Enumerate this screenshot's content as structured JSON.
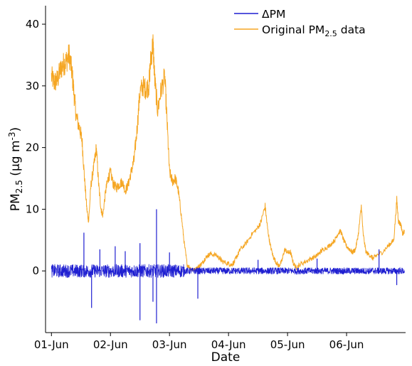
{
  "chart_data": {
    "type": "line",
    "xlabel": "Date",
    "ylabel": {
      "main": "PM",
      "sub": "2.5",
      "unit_prefix": " (µg m",
      "unit_sup": "-3",
      "unit_suffix": ")"
    },
    "x_ticks": [
      {
        "day": 1,
        "label": "01-Jun"
      },
      {
        "day": 2,
        "label": "02-Jun"
      },
      {
        "day": 3,
        "label": "03-Jun"
      },
      {
        "day": 4,
        "label": "04-Jun"
      },
      {
        "day": 5,
        "label": "05-Jun"
      },
      {
        "day": 6,
        "label": "06-Jun"
      }
    ],
    "xlim": [
      0.9,
      7.0
    ],
    "ylim": [
      -10,
      43
    ],
    "y_ticks": [
      0,
      10,
      20,
      30,
      40
    ],
    "grid": false,
    "legend_position": "top-right",
    "series": [
      {
        "name": "ΔPM",
        "color": "#1f1fd1",
        "baseline_range": [
          -1,
          1
        ],
        "spikes": [
          {
            "day": 1.55,
            "value": 6.2
          },
          {
            "day": 1.68,
            "value": -6.0
          },
          {
            "day": 1.82,
            "value": 3.5
          },
          {
            "day": 2.08,
            "value": 4.0
          },
          {
            "day": 2.25,
            "value": 3.2
          },
          {
            "day": 2.5,
            "value": 4.5
          },
          {
            "day": 2.5,
            "value": -8.0
          },
          {
            "day": 2.78,
            "value": 10.0
          },
          {
            "day": 2.78,
            "value": -8.5
          },
          {
            "day": 2.72,
            "value": -5.0
          },
          {
            "day": 3.0,
            "value": 3.0
          },
          {
            "day": 3.48,
            "value": -4.5
          },
          {
            "day": 4.5,
            "value": 1.8
          },
          {
            "day": 5.5,
            "value": 2.0
          },
          {
            "day": 6.55,
            "value": 3.5
          },
          {
            "day": 6.85,
            "value": -2.3
          }
        ]
      },
      {
        "name": "Original PM",
        "name_sub": "2.5",
        "name_suffix": " data",
        "color": "#f5a623",
        "points": [
          [
            1.0,
            31.5
          ],
          [
            1.05,
            30.5
          ],
          [
            1.1,
            31.0
          ],
          [
            1.15,
            32.5
          ],
          [
            1.2,
            33.5
          ],
          [
            1.25,
            34.0
          ],
          [
            1.3,
            35.0
          ],
          [
            1.35,
            32.0
          ],
          [
            1.38,
            29.0
          ],
          [
            1.42,
            25.0
          ],
          [
            1.48,
            23.0
          ],
          [
            1.52,
            21.0
          ],
          [
            1.56,
            15.0
          ],
          [
            1.6,
            10.0
          ],
          [
            1.63,
            8.0
          ],
          [
            1.67,
            14.0
          ],
          [
            1.72,
            17.0
          ],
          [
            1.76,
            20.0
          ],
          [
            1.8,
            14.0
          ],
          [
            1.84,
            10.0
          ],
          [
            1.87,
            9.0
          ],
          [
            1.92,
            13.0
          ],
          [
            1.96,
            15.0
          ],
          [
            2.0,
            16.0
          ],
          [
            2.05,
            14.0
          ],
          [
            2.1,
            13.5
          ],
          [
            2.15,
            14.0
          ],
          [
            2.2,
            14.5
          ],
          [
            2.25,
            13.0
          ],
          [
            2.3,
            14.0
          ],
          [
            2.35,
            16.0
          ],
          [
            2.4,
            18.0
          ],
          [
            2.45,
            23.0
          ],
          [
            2.5,
            29.0
          ],
          [
            2.55,
            30.0
          ],
          [
            2.6,
            29.5
          ],
          [
            2.65,
            30.0
          ],
          [
            2.68,
            34.0
          ],
          [
            2.72,
            37.0
          ],
          [
            2.75,
            31.0
          ],
          [
            2.8,
            26.0
          ],
          [
            2.85,
            29.0
          ],
          [
            2.92,
            31.5
          ],
          [
            2.96,
            24.0
          ],
          [
            3.0,
            16.0
          ],
          [
            3.05,
            14.5
          ],
          [
            3.1,
            15.0
          ],
          [
            3.15,
            13.0
          ],
          [
            3.2,
            9.0
          ],
          [
            3.25,
            4.5
          ],
          [
            3.3,
            1.0
          ],
          [
            3.35,
            0.5
          ],
          [
            3.4,
            0.0
          ],
          [
            3.45,
            0.3
          ],
          [
            3.5,
            0.8
          ],
          [
            3.55,
            1.2
          ],
          [
            3.6,
            2.0
          ],
          [
            3.65,
            2.5
          ],
          [
            3.7,
            2.8
          ],
          [
            3.8,
            2.5
          ],
          [
            3.85,
            2.0
          ],
          [
            3.9,
            1.5
          ],
          [
            4.0,
            1.2
          ],
          [
            4.05,
            1.0
          ],
          [
            4.1,
            1.5
          ],
          [
            4.15,
            2.5
          ],
          [
            4.2,
            3.5
          ],
          [
            4.3,
            4.5
          ],
          [
            4.4,
            6.0
          ],
          [
            4.5,
            7.0
          ],
          [
            4.55,
            8.0
          ],
          [
            4.62,
            10.5
          ],
          [
            4.66,
            7.0
          ],
          [
            4.7,
            4.5
          ],
          [
            4.75,
            2.5
          ],
          [
            4.8,
            1.5
          ],
          [
            4.85,
            0.8
          ],
          [
            4.9,
            1.5
          ],
          [
            4.95,
            3.5
          ],
          [
            5.0,
            3.0
          ],
          [
            5.05,
            3.0
          ],
          [
            5.1,
            1.2
          ],
          [
            5.15,
            0.5
          ],
          [
            5.2,
            1.0
          ],
          [
            5.3,
            1.5
          ],
          [
            5.4,
            2.0
          ],
          [
            5.5,
            2.5
          ],
          [
            5.55,
            3.0
          ],
          [
            5.6,
            3.5
          ],
          [
            5.7,
            4.0
          ],
          [
            5.8,
            5.0
          ],
          [
            5.85,
            6.0
          ],
          [
            5.9,
            6.5
          ],
          [
            5.95,
            5.0
          ],
          [
            6.0,
            4.0
          ],
          [
            6.05,
            3.5
          ],
          [
            6.1,
            3.0
          ],
          [
            6.15,
            3.5
          ],
          [
            6.2,
            6.0
          ],
          [
            6.25,
            10.5
          ],
          [
            6.28,
            6.0
          ],
          [
            6.33,
            3.0
          ],
          [
            6.4,
            2.5
          ],
          [
            6.45,
            2.0
          ],
          [
            6.5,
            2.5
          ],
          [
            6.6,
            3.0
          ],
          [
            6.7,
            4.0
          ],
          [
            6.75,
            4.5
          ],
          [
            6.8,
            5.0
          ],
          [
            6.85,
            11.5
          ],
          [
            6.88,
            8.0
          ],
          [
            6.92,
            7.5
          ],
          [
            6.95,
            6.0
          ],
          [
            6.98,
            6.5
          ]
        ]
      }
    ]
  }
}
